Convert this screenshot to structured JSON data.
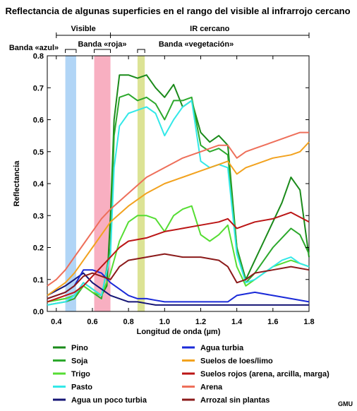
{
  "chart_data": {
    "type": "line",
    "title": "Reflectancia de algunas superficies en el rango del visible al infrarrojo cercano",
    "xlabel": "Longitud de onda (µm)",
    "ylabel": "Reflectancia",
    "xlim": [
      0.35,
      1.8
    ],
    "ylim": [
      0,
      0.8
    ],
    "x_ticks": [
      "0.4",
      "0.6",
      "0.8",
      "1.0",
      "1.2",
      "1.4",
      "1.6",
      "1.8"
    ],
    "y_ticks": [
      "0.0",
      "0.1",
      "0.2",
      "0.3",
      "0.4",
      "0.5",
      "0.6",
      "0.7",
      "0.8"
    ],
    "regions": [
      {
        "label": "Visible",
        "range": [
          0.4,
          0.7
        ]
      },
      {
        "label": "IR cercano",
        "range": [
          0.7,
          1.8
        ]
      }
    ],
    "bands": [
      {
        "label": "Banda «azul»",
        "range": [
          0.45,
          0.51
        ],
        "color": "#a8d0f5"
      },
      {
        "label": "Banda «roja»",
        "range": [
          0.61,
          0.7
        ],
        "color": "#f7a6ba"
      },
      {
        "label": "Banda «vegetación»",
        "range": [
          0.85,
          0.89
        ],
        "color": "#d8e08a"
      }
    ],
    "legend_placement": "bottom",
    "grid": false,
    "series": [
      {
        "name": "Pino",
        "color": "#1a8a1a",
        "x": [
          0.35,
          0.45,
          0.5,
          0.55,
          0.6,
          0.65,
          0.68,
          0.7,
          0.72,
          0.75,
          0.8,
          0.85,
          0.9,
          0.95,
          1.0,
          1.05,
          1.1,
          1.15,
          1.2,
          1.25,
          1.3,
          1.35,
          1.4,
          1.45,
          1.5,
          1.55,
          1.6,
          1.65,
          1.7,
          1.75,
          1.8
        ],
        "y": [
          0.03,
          0.04,
          0.05,
          0.09,
          0.07,
          0.05,
          0.08,
          0.3,
          0.6,
          0.74,
          0.74,
          0.73,
          0.74,
          0.7,
          0.67,
          0.71,
          0.64,
          0.66,
          0.56,
          0.53,
          0.55,
          0.52,
          0.2,
          0.1,
          0.16,
          0.22,
          0.28,
          0.34,
          0.42,
          0.38,
          0.17
        ]
      },
      {
        "name": "Soja",
        "color": "#2ca82c",
        "x": [
          0.35,
          0.45,
          0.5,
          0.55,
          0.6,
          0.65,
          0.7,
          0.72,
          0.75,
          0.8,
          0.85,
          0.9,
          0.95,
          1.0,
          1.05,
          1.1,
          1.15,
          1.2,
          1.25,
          1.3,
          1.35,
          1.4,
          1.45,
          1.5,
          1.55,
          1.6,
          1.65,
          1.7,
          1.75,
          1.8
        ],
        "y": [
          0.02,
          0.03,
          0.04,
          0.08,
          0.06,
          0.04,
          0.2,
          0.55,
          0.67,
          0.68,
          0.66,
          0.67,
          0.65,
          0.6,
          0.66,
          0.66,
          0.67,
          0.52,
          0.5,
          0.51,
          0.49,
          0.2,
          0.09,
          0.12,
          0.16,
          0.2,
          0.23,
          0.26,
          0.24,
          0.18
        ]
      },
      {
        "name": "Trigo",
        "color": "#55dd33",
        "x": [
          0.35,
          0.45,
          0.5,
          0.55,
          0.6,
          0.65,
          0.7,
          0.75,
          0.8,
          0.85,
          0.9,
          0.95,
          1.0,
          1.05,
          1.1,
          1.15,
          1.2,
          1.25,
          1.3,
          1.35,
          1.4,
          1.45,
          1.5,
          1.55,
          1.6,
          1.65,
          1.7,
          1.75,
          1.8
        ],
        "y": [
          0.03,
          0.04,
          0.05,
          0.08,
          0.06,
          0.05,
          0.12,
          0.22,
          0.28,
          0.3,
          0.3,
          0.29,
          0.25,
          0.3,
          0.32,
          0.33,
          0.24,
          0.22,
          0.24,
          0.27,
          0.14,
          0.08,
          0.1,
          0.12,
          0.14,
          0.15,
          0.16,
          0.15,
          0.14
        ]
      },
      {
        "name": "Pasto",
        "color": "#33e8e8",
        "x": [
          0.35,
          0.45,
          0.5,
          0.55,
          0.6,
          0.65,
          0.7,
          0.72,
          0.75,
          0.8,
          0.85,
          0.9,
          0.95,
          1.0,
          1.05,
          1.1,
          1.15,
          1.2,
          1.25,
          1.3,
          1.35,
          1.4,
          1.45,
          1.5,
          1.55,
          1.6,
          1.65,
          1.7,
          1.75,
          1.8
        ],
        "y": [
          0.02,
          0.03,
          0.05,
          0.09,
          0.07,
          0.05,
          0.18,
          0.45,
          0.58,
          0.62,
          0.63,
          0.64,
          0.62,
          0.55,
          0.6,
          0.64,
          0.66,
          0.47,
          0.45,
          0.46,
          0.45,
          0.18,
          0.09,
          0.1,
          0.12,
          0.14,
          0.16,
          0.17,
          0.15,
          0.14
        ]
      },
      {
        "name": "Agua un poco turbia",
        "color": "#151575",
        "x": [
          0.35,
          0.45,
          0.5,
          0.55,
          0.6,
          0.65,
          0.7,
          0.75,
          0.8,
          0.85,
          0.9,
          0.95,
          1.0,
          1.1,
          1.2,
          1.3,
          1.35,
          1.4,
          1.5,
          1.6,
          1.7,
          1.8
        ],
        "y": [
          0.05,
          0.08,
          0.1,
          0.12,
          0.09,
          0.07,
          0.05,
          0.04,
          0.03,
          0.03,
          0.025,
          0.02,
          0.02,
          0.02,
          0.02,
          0.02,
          0.02,
          0.02,
          0.02,
          0.02,
          0.02,
          0.02
        ]
      },
      {
        "name": "Agua turbia",
        "color": "#1a2ad8",
        "x": [
          0.35,
          0.45,
          0.5,
          0.55,
          0.6,
          0.65,
          0.7,
          0.75,
          0.8,
          0.85,
          0.9,
          0.95,
          1.0,
          1.1,
          1.2,
          1.3,
          1.35,
          1.4,
          1.5,
          1.6,
          1.7,
          1.8
        ],
        "y": [
          0.04,
          0.06,
          0.08,
          0.13,
          0.13,
          0.12,
          0.09,
          0.07,
          0.05,
          0.04,
          0.04,
          0.035,
          0.03,
          0.03,
          0.03,
          0.03,
          0.03,
          0.05,
          0.06,
          0.05,
          0.04,
          0.03
        ]
      },
      {
        "name": "Suelos de loes/limo",
        "color": "#f2a21e",
        "x": [
          0.35,
          0.4,
          0.45,
          0.5,
          0.55,
          0.6,
          0.65,
          0.7,
          0.8,
          0.9,
          1.0,
          1.1,
          1.2,
          1.3,
          1.35,
          1.4,
          1.45,
          1.5,
          1.6,
          1.7,
          1.75,
          1.8
        ],
        "y": [
          0.05,
          0.07,
          0.09,
          0.12,
          0.16,
          0.2,
          0.24,
          0.28,
          0.33,
          0.37,
          0.4,
          0.42,
          0.44,
          0.46,
          0.47,
          0.43,
          0.45,
          0.46,
          0.48,
          0.49,
          0.5,
          0.53
        ]
      },
      {
        "name": "Suelos rojos (arena, arcilla, marga)",
        "color": "#bb1515",
        "x": [
          0.35,
          0.45,
          0.5,
          0.55,
          0.6,
          0.65,
          0.7,
          0.75,
          0.8,
          0.9,
          1.0,
          1.1,
          1.2,
          1.3,
          1.35,
          1.4,
          1.45,
          1.5,
          1.6,
          1.7,
          1.8
        ],
        "y": [
          0.03,
          0.05,
          0.06,
          0.08,
          0.11,
          0.14,
          0.17,
          0.2,
          0.22,
          0.23,
          0.25,
          0.26,
          0.27,
          0.28,
          0.29,
          0.26,
          0.27,
          0.28,
          0.29,
          0.31,
          0.28
        ]
      },
      {
        "name": "Arena",
        "color": "#ee6f5a",
        "x": [
          0.35,
          0.4,
          0.45,
          0.5,
          0.55,
          0.6,
          0.65,
          0.7,
          0.8,
          0.9,
          1.0,
          1.1,
          1.2,
          1.3,
          1.35,
          1.4,
          1.45,
          1.5,
          1.6,
          1.7,
          1.75,
          1.8
        ],
        "y": [
          0.08,
          0.1,
          0.13,
          0.17,
          0.21,
          0.25,
          0.29,
          0.32,
          0.37,
          0.42,
          0.45,
          0.48,
          0.5,
          0.52,
          0.52,
          0.48,
          0.5,
          0.51,
          0.53,
          0.55,
          0.56,
          0.56
        ]
      },
      {
        "name": "Arrozal sin plantas",
        "color": "#8b1a1a",
        "x": [
          0.35,
          0.45,
          0.5,
          0.55,
          0.6,
          0.65,
          0.7,
          0.75,
          0.8,
          0.9,
          1.0,
          1.1,
          1.2,
          1.3,
          1.35,
          1.4,
          1.45,
          1.5,
          1.6,
          1.7,
          1.8
        ],
        "y": [
          0.04,
          0.06,
          0.08,
          0.11,
          0.12,
          0.11,
          0.1,
          0.14,
          0.16,
          0.17,
          0.18,
          0.17,
          0.17,
          0.16,
          0.14,
          0.09,
          0.1,
          0.12,
          0.13,
          0.14,
          0.13
        ]
      }
    ]
  },
  "credit": "GMU"
}
